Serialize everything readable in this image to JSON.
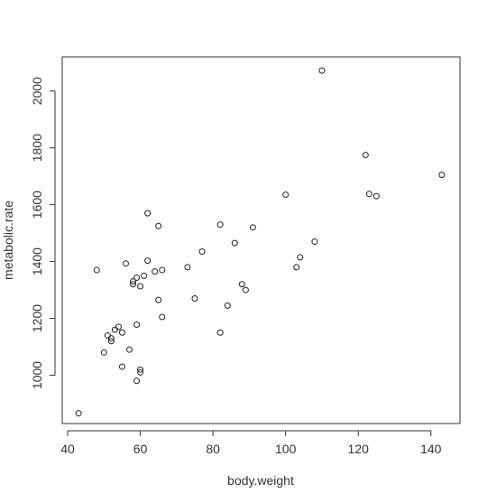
{
  "chart_data": {
    "type": "scatter",
    "xlabel": "body.weight",
    "ylabel": "metabolic.rate",
    "xlim": [
      38.5,
      148
    ],
    "ylim": [
      830,
      2120
    ],
    "xticks": [
      40,
      60,
      80,
      100,
      120,
      140
    ],
    "yticks": [
      1000,
      1200,
      1400,
      1600,
      1800,
      2000
    ],
    "series": [
      {
        "x": [
          43,
          48,
          50,
          51,
          52,
          52,
          53,
          54,
          55,
          55,
          56,
          57,
          58,
          58,
          59,
          59,
          59,
          60,
          60,
          60,
          61,
          62,
          62,
          64,
          65,
          65,
          66,
          66,
          73,
          75,
          77,
          82,
          82,
          84,
          86,
          88,
          89,
          91,
          100,
          103,
          104,
          108,
          110,
          122,
          123,
          125,
          143
        ],
        "y": [
          866,
          1370,
          1080,
          1140,
          1120,
          1130,
          1160,
          1170,
          1150,
          1030,
          1393,
          1090,
          1320,
          1330,
          1178,
          1343,
          980,
          1313,
          1020,
          1010,
          1350,
          1570,
          1403,
          1365,
          1525,
          1265,
          1205,
          1370,
          1380,
          1270,
          1435,
          1530,
          1150,
          1245,
          1465,
          1320,
          1300,
          1520,
          1635,
          1380,
          1415,
          1470,
          2072,
          1775,
          1638,
          1630,
          1705
        ]
      }
    ]
  }
}
